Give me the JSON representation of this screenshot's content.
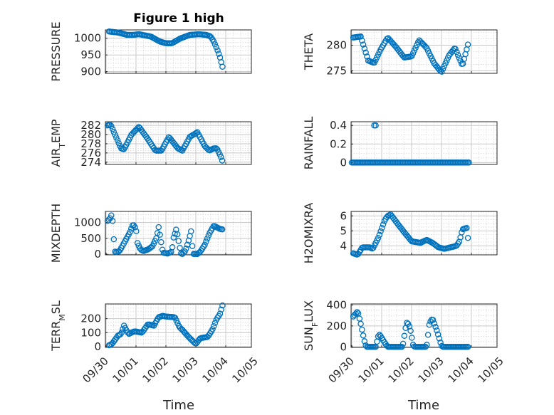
{
  "figure": {
    "title": "Figure 1 high",
    "xlabel": "Time",
    "xtick_labels": [
      "09/30",
      "10/01",
      "10/02",
      "10/03",
      "10/04",
      "10/05"
    ],
    "marker_color": "#0072BD"
  },
  "chart_data": [
    {
      "type": "scatter",
      "name": "PRESSURE",
      "ylabel": "PRESSURE",
      "ylim": [
        895,
        1025
      ],
      "yticks": [
        900,
        950,
        1000
      ],
      "ytick_labels": [
        "900",
        "950",
        "1000"
      ],
      "grid": true,
      "xlim_days": [
        0,
        5
      ],
      "anchors_days": [
        0.1,
        0.4,
        0.7,
        0.9,
        1.1,
        1.5,
        1.8,
        2.0,
        2.2,
        2.5,
        2.8,
        3.1,
        3.35,
        3.5,
        3.6,
        3.7,
        3.8,
        3.9
      ],
      "anchor_values": [
        1020,
        1017,
        1010,
        1010,
        1012,
        1005,
        990,
        985,
        985,
        1000,
        1010,
        1012,
        1010,
        1005,
        990,
        970,
        945,
        912
      ]
    },
    {
      "type": "scatter",
      "name": "THETA",
      "ylabel": "THETA",
      "ylim": [
        274.5,
        283
      ],
      "yticks": [
        275,
        280
      ],
      "ytick_labels": [
        "275",
        "280"
      ],
      "grid": true,
      "xlim_days": [
        0,
        5
      ],
      "anchors_days": [
        0.05,
        0.3,
        0.55,
        0.75,
        0.95,
        1.2,
        1.5,
        1.75,
        2.0,
        2.25,
        2.5,
        2.75,
        3.0,
        3.25,
        3.45,
        3.7,
        3.9
      ],
      "anchor_values": [
        281.5,
        281.7,
        277.0,
        276.5,
        279.0,
        281.5,
        279.5,
        277.6,
        277.8,
        281.0,
        279.5,
        276.5,
        274.7,
        278.0,
        279.5,
        276.0,
        280.5
      ]
    },
    {
      "type": "scatter",
      "name": "AIR_TEMP",
      "ylabel": "AIR_TEMP",
      "ylim": [
        273.5,
        282.8
      ],
      "yticks": [
        274,
        276,
        278,
        280,
        282
      ],
      "ytick_labels": [
        "274",
        "276",
        "278",
        "280",
        "282"
      ],
      "grid": true,
      "xlim_days": [
        0,
        5
      ],
      "anchors_days": [
        0.05,
        0.15,
        0.5,
        0.6,
        0.85,
        1.1,
        1.4,
        1.65,
        1.85,
        2.1,
        2.4,
        2.55,
        2.8,
        3.05,
        3.3,
        3.45,
        3.6,
        3.7,
        3.85,
        3.9
      ],
      "anchor_values": [
        282.0,
        282.2,
        277.0,
        276.8,
        280.0,
        281.7,
        279.0,
        276.5,
        276.5,
        279.5,
        277.0,
        276.5,
        279.5,
        280.5,
        277.5,
        276.5,
        277.0,
        277.0,
        275.0,
        274.0
      ]
    },
    {
      "type": "scatter",
      "name": "RAINFALL",
      "ylabel": "RAINFALL",
      "ylim": [
        -0.02,
        0.44
      ],
      "yticks": [
        0,
        0.2,
        0.4
      ],
      "ytick_labels": [
        "0",
        "0.2",
        "0.4"
      ],
      "grid": true,
      "xlim_days": [
        0,
        5
      ],
      "anchors_days": [
        0.0,
        3.92
      ],
      "anchor_values": [
        0,
        0
      ],
      "spikes": [
        {
          "day": 0.75,
          "value": 0.4
        },
        {
          "day": 0.8,
          "value": 0.4
        }
      ]
    },
    {
      "type": "scatter",
      "name": "MIXDEPTH",
      "ylabel": "MIXDEPTH",
      "ylim": [
        -20,
        1350
      ],
      "yticks": [
        0,
        500,
        1000
      ],
      "ytick_labels": [
        "0",
        "500",
        "1000"
      ],
      "grid": true,
      "xlim_days": [
        0,
        5
      ],
      "anchors_days": [
        0.05,
        0.15,
        0.2,
        0.25,
        0.3,
        0.35,
        0.45,
        0.6,
        0.8,
        0.9,
        1.0,
        1.05,
        1.15,
        1.25,
        1.4,
        1.55,
        1.7,
        1.75,
        1.9,
        2.05,
        2.2,
        2.25,
        2.35,
        2.5,
        2.55,
        2.65,
        2.75,
        2.85,
        2.9,
        3.05,
        3.15,
        3.3,
        3.45,
        3.6,
        3.7,
        3.8,
        3.9
      ],
      "anchor_values": [
        1050,
        1150,
        1300,
        550,
        80,
        60,
        100,
        350,
        700,
        950,
        800,
        350,
        150,
        100,
        150,
        250,
        550,
        900,
        50,
        20,
        80,
        500,
        800,
        30,
        10,
        100,
        400,
        750,
        10,
        5,
        80,
        300,
        650,
        900,
        850,
        800,
        780
      ]
    },
    {
      "type": "scatter",
      "name": "H2OMIXRA",
      "ylabel": "H2OMIXRA",
      "ylim": [
        3.4,
        6.3
      ],
      "yticks": [
        4,
        5,
        6
      ],
      "ytick_labels": [
        "4",
        "5",
        "6"
      ],
      "grid": true,
      "xlim_days": [
        0,
        5
      ],
      "anchors_days": [
        0.05,
        0.2,
        0.35,
        0.6,
        0.7,
        0.9,
        1.1,
        1.2,
        1.3,
        1.6,
        1.8,
        2.0,
        2.3,
        2.5,
        2.7,
        2.9,
        3.1,
        3.3,
        3.5,
        3.6,
        3.7,
        3.85,
        3.9
      ],
      "anchor_values": [
        3.5,
        3.4,
        3.9,
        3.9,
        3.8,
        4.6,
        5.7,
        6.0,
        6.1,
        5.3,
        4.8,
        4.3,
        4.2,
        4.4,
        4.2,
        3.9,
        3.8,
        3.9,
        4.0,
        4.3,
        5.1,
        5.2,
        4.2
      ]
    },
    {
      "type": "scatter",
      "name": "TERR_MSL",
      "ylabel": "TERR_MSL",
      "ylim": [
        -5,
        305
      ],
      "yticks": [
        0,
        100,
        200
      ],
      "ytick_labels": [
        "0",
        "100",
        "200"
      ],
      "grid": true,
      "xlim_days": [
        0,
        5
      ],
      "anchors_days": [
        0.1,
        0.2,
        0.4,
        0.5,
        0.6,
        0.75,
        0.95,
        1.2,
        1.4,
        1.6,
        1.75,
        1.9,
        2.0,
        2.3,
        2.45,
        2.55,
        2.8,
        3.0,
        3.15,
        3.4,
        3.55,
        3.7,
        3.8,
        3.9
      ],
      "anchor_values": [
        10,
        20,
        80,
        90,
        150,
        90,
        110,
        100,
        160,
        150,
        210,
        220,
        215,
        210,
        140,
        120,
        60,
        20,
        60,
        70,
        120,
        200,
        230,
        300
      ]
    },
    {
      "type": "scatter",
      "name": "SUN_FLUX",
      "ylabel": "SUN_FLUX",
      "ylim": [
        -5,
        410
      ],
      "yticks": [
        0,
        200,
        400
      ],
      "ytick_labels": [
        "0",
        "200",
        "400"
      ],
      "grid": true,
      "xlim_days": [
        0,
        5
      ],
      "anchors_days": [
        0.05,
        0.2,
        0.3,
        0.45,
        0.5,
        0.8,
        0.9,
        0.95,
        1.1,
        1.2,
        1.25,
        1.7,
        1.8,
        1.85,
        1.95,
        2.05,
        2.1,
        2.5,
        2.6,
        2.7,
        2.85,
        3.0,
        3.05,
        3.9
      ],
      "anchor_values": [
        290,
        340,
        220,
        20,
        0,
        0,
        120,
        110,
        40,
        0,
        0,
        0,
        180,
        240,
        180,
        20,
        0,
        0,
        230,
        270,
        150,
        10,
        0,
        0
      ]
    }
  ]
}
